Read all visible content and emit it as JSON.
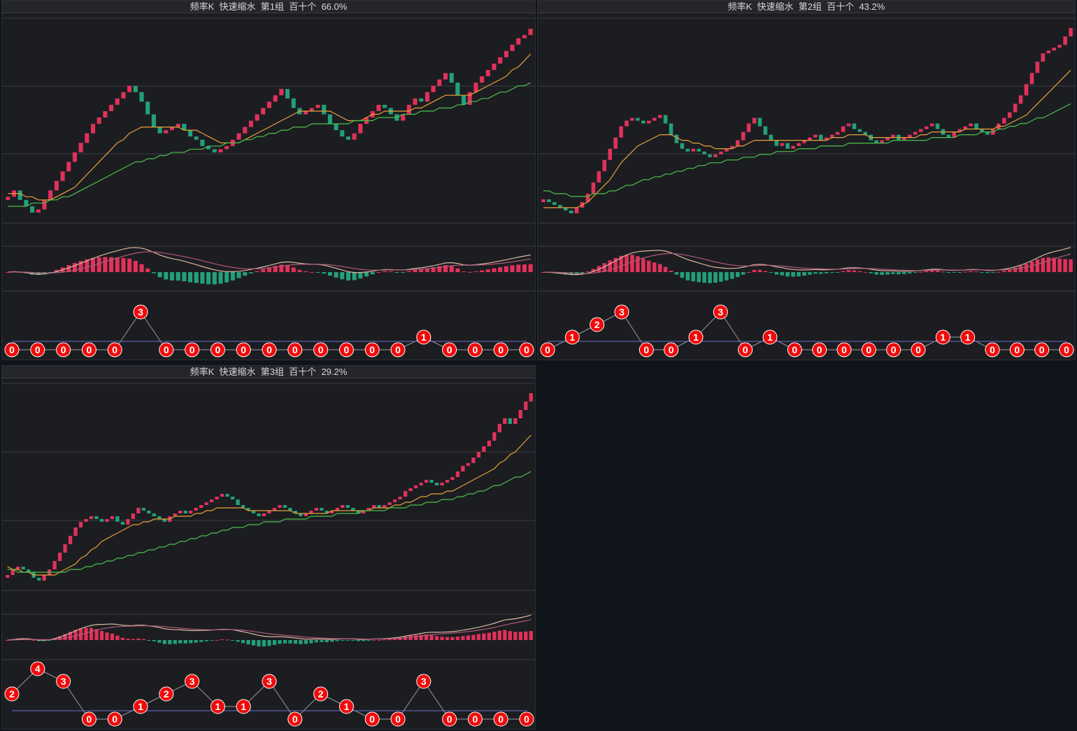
{
  "colors": {
    "up": "#e0325a",
    "down": "#22a07a",
    "ma_fast": "#e8a23a",
    "ma_slow": "#4cc04c",
    "dif": "#d8b8a0",
    "dea": "#b05a7a",
    "grid": "#3c3d42",
    "bubble_red": "#f00a0a",
    "bubble_green": "#1f9a6a",
    "bubble_blue": "#3d5ef0",
    "bubble_purple": "#a020e0"
  },
  "chart_data": [
    {
      "type": "candlestick",
      "title": "频率K  快速缩水  第1组  百十个  66.0%",
      "closes": [
        50,
        52,
        49,
        47,
        45,
        46,
        49,
        52,
        55,
        58,
        61,
        64,
        67,
        70,
        73,
        75,
        77,
        79,
        81,
        83,
        85,
        83,
        80,
        76,
        72,
        70,
        71,
        72,
        73,
        71,
        69,
        68,
        66,
        65,
        64,
        65,
        66,
        68,
        70,
        72,
        74,
        76,
        78,
        80,
        82,
        84,
        81,
        78,
        76,
        77,
        78,
        79,
        76,
        73,
        71,
        69,
        68,
        70,
        73,
        75,
        77,
        79,
        78,
        76,
        74,
        76,
        79,
        81,
        80,
        83,
        85,
        87,
        89,
        86,
        82,
        79,
        83,
        86,
        88,
        90,
        92,
        94,
        96,
        98,
        100,
        101,
        103
      ],
      "ma_fast": [
        51,
        51,
        51,
        50,
        50,
        49,
        49,
        49,
        50,
        51,
        52,
        53,
        55,
        57,
        59,
        61,
        63,
        65,
        67,
        68,
        70,
        71,
        72,
        72,
        72,
        72,
        72,
        72,
        72,
        71,
        71,
        71,
        70,
        69,
        68,
        67,
        67,
        67,
        67,
        68,
        69,
        70,
        71,
        72,
        73,
        74,
        75,
        76,
        77,
        77,
        77,
        77,
        77,
        77,
        76,
        75,
        74,
        74,
        74,
        75,
        76,
        76,
        77,
        77,
        77,
        77,
        77,
        78,
        78,
        79,
        80,
        81,
        82,
        82,
        82,
        82,
        82,
        83,
        84,
        85,
        86,
        87,
        88,
        90,
        91,
        93,
        95
      ],
      "ma_slow": [
        47,
        47,
        47,
        47,
        48,
        48,
        48,
        49,
        49,
        50,
        50,
        51,
        52,
        53,
        54,
        55,
        56,
        57,
        58,
        59,
        60,
        61,
        61,
        62,
        62,
        63,
        63,
        64,
        64,
        64,
        65,
        65,
        65,
        66,
        66,
        66,
        67,
        67,
        67,
        68,
        68,
        69,
        69,
        70,
        70,
        71,
        71,
        72,
        72,
        72,
        73,
        73,
        73,
        73,
        73,
        73,
        73,
        74,
        74,
        74,
        74,
        75,
        75,
        75,
        75,
        76,
        76,
        76,
        77,
        77,
        77,
        78,
        78,
        78,
        79,
        79,
        80,
        80,
        81,
        81,
        82,
        83,
        83,
        84,
        85,
        85,
        86
      ],
      "signals": [
        0,
        0,
        0,
        0,
        0,
        3,
        0,
        0,
        0,
        0,
        0,
        0,
        0,
        0,
        0,
        0,
        1,
        0,
        0,
        0,
        0
      ]
    },
    {
      "type": "candlestick",
      "title": "频率K  快速缩水  第2组  百十个  43.2%",
      "closes": [
        45,
        44,
        43,
        42,
        41,
        40,
        42,
        44,
        47,
        51,
        55,
        59,
        63,
        67,
        71,
        73,
        74,
        73,
        72,
        73,
        74,
        75,
        72,
        68,
        65,
        63,
        62,
        63,
        62,
        61,
        60,
        61,
        62,
        63,
        64,
        66,
        69,
        72,
        74,
        71,
        68,
        66,
        64,
        65,
        63,
        64,
        65,
        66,
        67,
        68,
        66,
        67,
        68,
        69,
        71,
        72,
        70,
        69,
        68,
        66,
        65,
        66,
        67,
        68,
        66,
        67,
        68,
        69,
        70,
        71,
        72,
        70,
        68,
        67,
        69,
        70,
        71,
        72,
        70,
        69,
        68,
        70,
        72,
        74,
        76,
        79,
        82,
        86,
        90,
        94,
        97,
        98,
        99,
        100,
        103,
        106
      ],
      "ma_fast": [
        42,
        42,
        42,
        42,
        42,
        42,
        42,
        43,
        44,
        46,
        48,
        50,
        52,
        55,
        58,
        60,
        62,
        64,
        65,
        66,
        67,
        68,
        68,
        68,
        67,
        66,
        66,
        65,
        65,
        64,
        64,
        63,
        63,
        63,
        63,
        64,
        64,
        65,
        66,
        66,
        66,
        66,
        66,
        66,
        66,
        66,
        66,
        66,
        66,
        66,
        66,
        66,
        67,
        67,
        67,
        68,
        68,
        68,
        68,
        67,
        67,
        67,
        67,
        67,
        67,
        67,
        67,
        67,
        68,
        68,
        69,
        69,
        69,
        69,
        69,
        69,
        70,
        70,
        70,
        70,
        70,
        70,
        71,
        71,
        72,
        73,
        74,
        75,
        77,
        79,
        81,
        83,
        85,
        87,
        89,
        91
      ],
      "ma_slow": [
        48,
        48,
        47,
        47,
        47,
        46,
        46,
        46,
        46,
        47,
        47,
        47,
        48,
        48,
        49,
        50,
        50,
        51,
        52,
        52,
        53,
        53,
        54,
        54,
        55,
        55,
        56,
        56,
        57,
        57,
        58,
        58,
        58,
        59,
        59,
        59,
        60,
        60,
        60,
        61,
        61,
        61,
        62,
        62,
        62,
        62,
        63,
        63,
        63,
        63,
        64,
        64,
        64,
        64,
        64,
        65,
        65,
        65,
        65,
        65,
        65,
        65,
        65,
        66,
        66,
        66,
        66,
        66,
        66,
        66,
        67,
        67,
        67,
        67,
        67,
        68,
        68,
        68,
        68,
        69,
        69,
        69,
        70,
        70,
        71,
        71,
        72,
        72,
        73,
        74,
        74,
        75,
        76,
        77,
        78,
        79
      ],
      "signals": [
        0,
        1,
        2,
        3,
        0,
        0,
        1,
        3,
        0,
        1,
        0,
        0,
        0,
        0,
        0,
        0,
        1,
        1,
        0,
        0,
        0,
        0
      ]
    },
    {
      "type": "candlestick",
      "title": "频率K  快速缩水  第3组  百十个  29.2%",
      "closes": [
        38,
        40,
        41,
        40,
        39,
        37,
        36,
        38,
        40,
        43,
        46,
        49,
        52,
        55,
        57,
        58,
        59,
        58,
        57,
        58,
        59,
        57,
        56,
        58,
        60,
        62,
        61,
        60,
        59,
        58,
        57,
        59,
        60,
        61,
        60,
        61,
        62,
        63,
        64,
        65,
        66,
        67,
        66,
        65,
        63,
        62,
        61,
        60,
        59,
        60,
        61,
        62,
        63,
        62,
        61,
        60,
        59,
        60,
        61,
        62,
        61,
        60,
        61,
        62,
        63,
        62,
        61,
        60,
        61,
        62,
        63,
        62,
        63,
        64,
        65,
        66,
        68,
        69,
        70,
        71,
        72,
        71,
        70,
        71,
        72,
        73,
        75,
        77,
        78,
        80,
        82,
        84,
        86,
        89,
        92,
        94,
        92,
        94,
        97,
        100,
        103
      ],
      "ma_fast": [
        41,
        40,
        40,
        39,
        39,
        38,
        38,
        38,
        38,
        38,
        39,
        40,
        41,
        42,
        44,
        45,
        47,
        48,
        50,
        51,
        52,
        53,
        54,
        55,
        56,
        56,
        57,
        57,
        58,
        58,
        58,
        58,
        59,
        59,
        59,
        59,
        60,
        60,
        61,
        61,
        62,
        62,
        62,
        62,
        62,
        62,
        61,
        61,
        61,
        61,
        61,
        61,
        61,
        61,
        61,
        60,
        60,
        60,
        60,
        60,
        60,
        60,
        61,
        61,
        61,
        61,
        61,
        61,
        61,
        61,
        62,
        62,
        62,
        62,
        63,
        63,
        64,
        64,
        65,
        66,
        66,
        67,
        67,
        67,
        68,
        68,
        69,
        70,
        71,
        72,
        73,
        74,
        75,
        76,
        78,
        79,
        81,
        82,
        84,
        86,
        88
      ],
      "ma_slow": [
        40,
        40,
        39,
        39,
        39,
        39,
        39,
        39,
        39,
        39,
        39,
        39,
        40,
        40,
        40,
        41,
        41,
        42,
        42,
        43,
        43,
        44,
        44,
        45,
        45,
        46,
        46,
        47,
        47,
        48,
        48,
        49,
        49,
        50,
        50,
        51,
        51,
        52,
        52,
        53,
        53,
        54,
        54,
        55,
        55,
        55,
        56,
        56,
        56,
        57,
        57,
        57,
        57,
        58,
        58,
        58,
        58,
        58,
        59,
        59,
        59,
        59,
        59,
        60,
        60,
        60,
        60,
        60,
        61,
        61,
        61,
        61,
        61,
        62,
        62,
        62,
        62,
        63,
        63,
        63,
        64,
        64,
        64,
        65,
        65,
        65,
        66,
        66,
        67,
        67,
        68,
        68,
        69,
        70,
        70,
        71,
        72,
        73,
        73,
        74,
        75
      ],
      "signals": [
        2,
        4,
        3,
        0,
        0,
        1,
        2,
        3,
        1,
        1,
        3,
        0,
        2,
        1,
        0,
        0,
        3,
        0,
        0,
        0,
        0
      ]
    }
  ]
}
